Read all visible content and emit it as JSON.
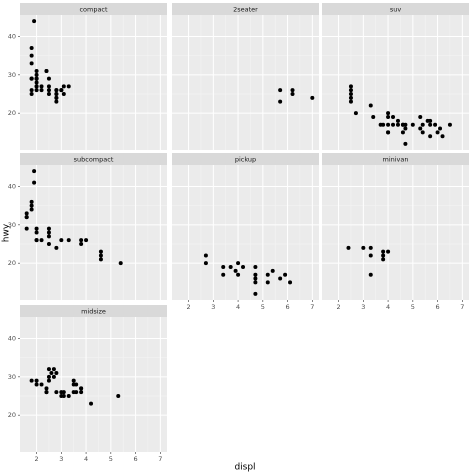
{
  "x_label": "displ",
  "y_label": "hwy",
  "xlim": [
    1.33,
    7.27
  ],
  "ylim": [
    10.4,
    45.6
  ],
  "xticks": [
    2,
    3,
    4,
    5,
    6,
    7
  ],
  "yticks": [
    20,
    30,
    40
  ],
  "grid": true,
  "chart_data": [
    {
      "type": "scatter",
      "title": "compact",
      "x": [
        1.8,
        1.8,
        2.0,
        2.0,
        2.8,
        2.8,
        3.1,
        1.8,
        1.8,
        2.0,
        2.0,
        2.8,
        2.8,
        3.1,
        1.9,
        2.0,
        2.0,
        2.5,
        2.8,
        2.8,
        1.8,
        1.8,
        1.8,
        1.8,
        2.2,
        2.2,
        2.4,
        2.4,
        3.0,
        3.0,
        3.3,
        2.5,
        2.5,
        2.5,
        2.0,
        2.0,
        2.8,
        2.0
      ],
      "values": [
        29,
        29,
        31,
        30,
        26,
        26,
        27,
        26,
        25,
        28,
        27,
        25,
        25,
        25,
        44,
        29,
        26,
        29,
        23,
        24,
        35,
        37,
        33,
        29,
        26,
        27,
        31,
        31,
        26,
        26,
        27,
        26,
        25,
        27,
        29,
        29,
        24,
        27
      ]
    },
    {
      "type": "scatter",
      "title": "2seater",
      "x": [
        5.7,
        5.7,
        6.2,
        6.2,
        7.0
      ],
      "values": [
        26,
        23,
        26,
        25,
        24
      ]
    },
    {
      "type": "scatter",
      "title": "suv",
      "x": [
        2.5,
        2.5,
        2.5,
        2.5,
        2.5,
        2.7,
        3.3,
        3.4,
        3.8,
        4.0,
        4.0,
        4.0,
        4.2,
        4.4,
        4.6,
        4.7,
        4.7,
        5.3,
        5.4,
        5.7,
        6.1,
        5.3,
        4.7,
        4.6,
        5.4,
        5.6,
        6.5,
        4.0,
        4.2,
        5.0,
        5.7,
        5.9,
        6.2,
        4.6,
        4.0,
        4.4,
        3.7,
        5.7,
        6.0
      ],
      "values": [
        27,
        25,
        26,
        23,
        24,
        20,
        22,
        19,
        17,
        17,
        19,
        15,
        17,
        17,
        17,
        17,
        16,
        19,
        17,
        17,
        16,
        16,
        12,
        15,
        15,
        18,
        17,
        20,
        19,
        17,
        14,
        17,
        14,
        17,
        15,
        18,
        17,
        18,
        15
      ]
    },
    {
      "type": "scatter",
      "title": "subcompact",
      "x": [
        1.6,
        1.6,
        1.6,
        1.6,
        1.8,
        1.8,
        1.9,
        1.9,
        2.0,
        2.0,
        2.0,
        2.0,
        2.2,
        2.5,
        2.5,
        2.5,
        3.0,
        3.3,
        3.8,
        3.8,
        4.0,
        4.6,
        4.6,
        4.6,
        5.4,
        2.8,
        1.8,
        2.5
      ],
      "values": [
        33,
        32,
        32,
        29,
        36,
        34,
        44,
        41,
        29,
        26,
        28,
        26,
        26,
        27,
        25,
        28,
        26,
        26,
        26,
        25,
        26,
        22,
        23,
        21,
        20,
        24,
        35,
        29
      ]
    },
    {
      "type": "scatter",
      "title": "pickup",
      "x": [
        2.7,
        2.7,
        3.4,
        3.4,
        3.7,
        3.9,
        4.0,
        4.7,
        4.7,
        5.2,
        5.9,
        4.7,
        4.7,
        5.7,
        4.7,
        4.0,
        5.2,
        6.1,
        5.4,
        4.2
      ],
      "values": [
        20,
        22,
        17,
        19,
        19,
        18,
        20,
        17,
        15,
        17,
        17,
        12,
        19,
        16,
        16,
        17,
        15,
        15,
        18,
        19
      ]
    },
    {
      "type": "scatter",
      "title": "minivan",
      "x": [
        2.4,
        3.0,
        3.3,
        3.3,
        3.3,
        3.8,
        4.0,
        3.8,
        3.8
      ],
      "values": [
        24,
        24,
        24,
        22,
        17,
        22,
        23,
        21,
        23
      ]
    },
    {
      "type": "scatter",
      "title": "midsize",
      "x": [
        1.8,
        2.0,
        2.2,
        2.5,
        2.4,
        2.5,
        2.7,
        2.8,
        2.4,
        3.0,
        3.1,
        3.5,
        3.5,
        3.8,
        3.8,
        4.2,
        5.3,
        2.8,
        2.6,
        3.0,
        3.3,
        3.5,
        3.6,
        2.0,
        2.4,
        3.1,
        3.6,
        3.8,
        2.7,
        2.5
      ],
      "values": [
        29,
        29,
        28,
        29,
        27,
        30,
        32,
        31,
        26,
        26,
        26,
        28,
        29,
        26,
        27,
        23,
        25,
        26,
        31,
        25,
        25,
        26,
        26,
        28,
        26,
        25,
        28,
        27,
        30,
        32
      ]
    }
  ]
}
